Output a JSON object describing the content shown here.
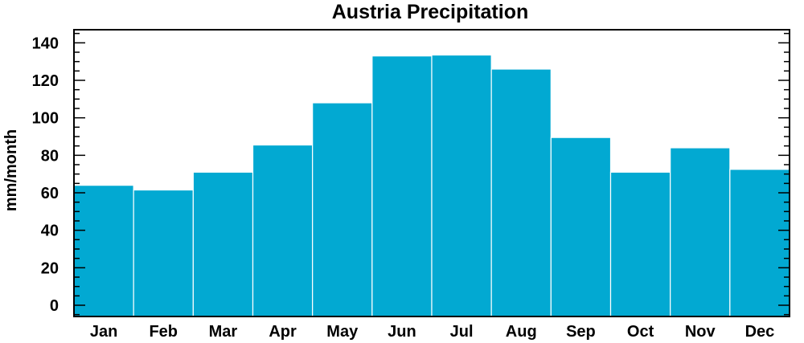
{
  "chart_data": {
    "type": "bar",
    "title": "Austria Precipitation",
    "xlabel": "",
    "ylabel": "mm/month",
    "categories": [
      "Jan",
      "Feb",
      "Mar",
      "Apr",
      "May",
      "Jun",
      "Jul",
      "Aug",
      "Sep",
      "Oct",
      "Nov",
      "Dec"
    ],
    "values": [
      64,
      61.5,
      71,
      85.5,
      108,
      133,
      133.5,
      126,
      89.5,
      71,
      84,
      72.5
    ],
    "ylim": [
      -6,
      147
    ],
    "yticks": [
      0,
      20,
      40,
      60,
      80,
      100,
      120,
      140
    ],
    "yticks_minor_step": 5,
    "bar_color": "#02a9d2",
    "grid": false,
    "legend": "none"
  }
}
